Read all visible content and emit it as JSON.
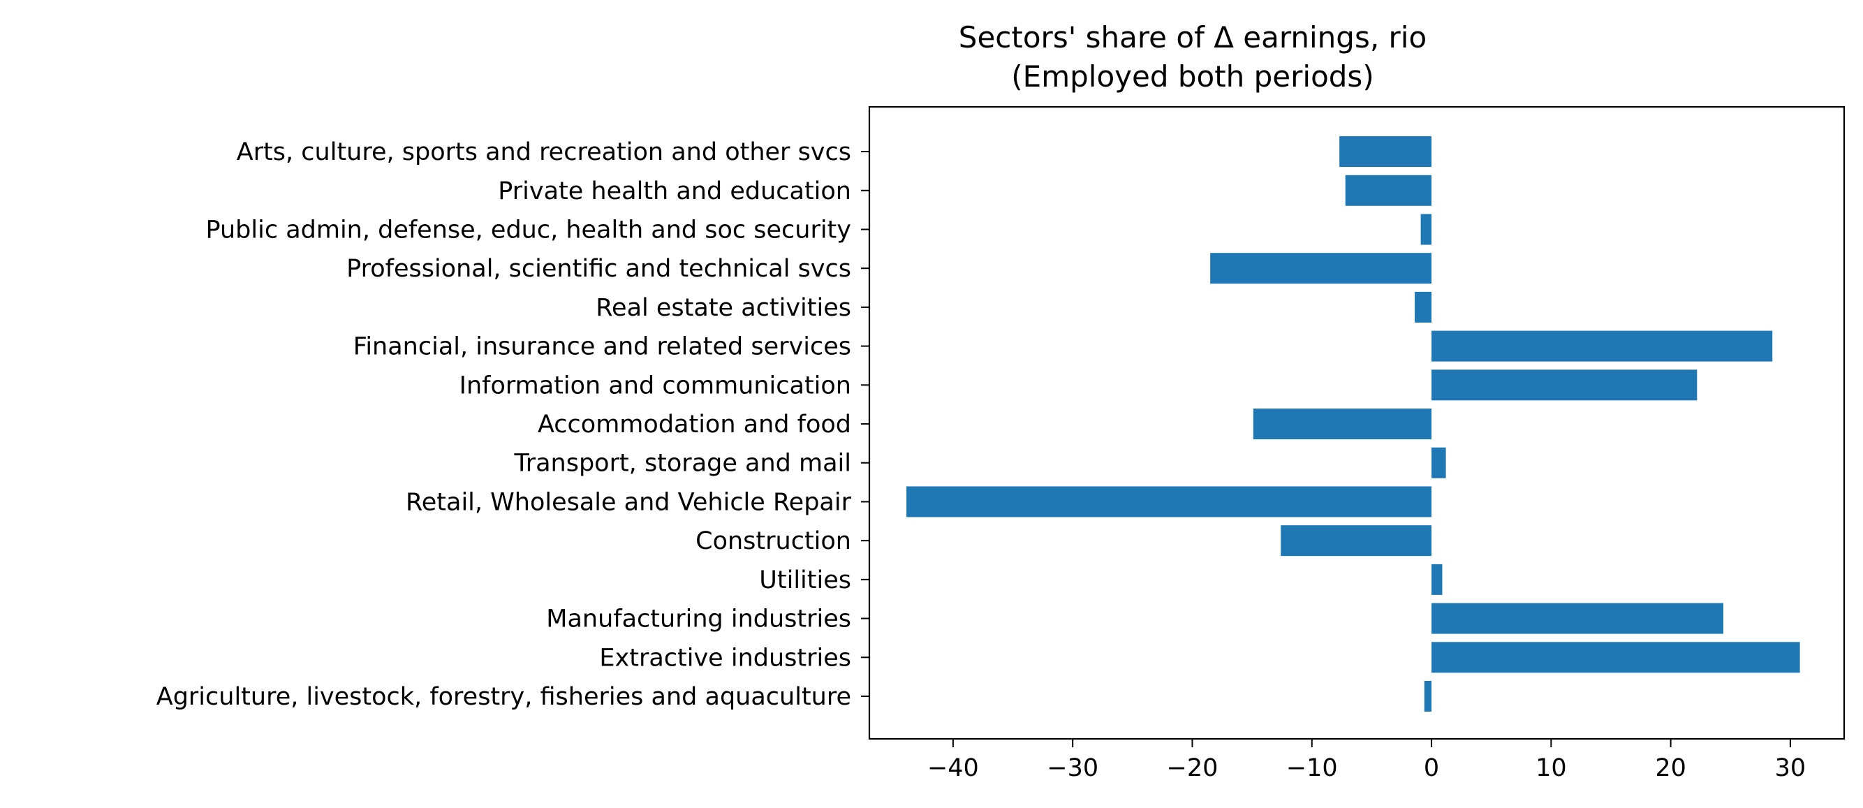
{
  "chart_data": {
    "type": "bar",
    "orientation": "horizontal",
    "title": "Sectors' share of Δ earnings, rio",
    "subtitle": "(Employed both periods)",
    "xlabel": "",
    "ylabel": "",
    "xlim": [
      -47,
      34.5
    ],
    "xticks": [
      -40,
      -30,
      -20,
      -10,
      0,
      10,
      20,
      30
    ],
    "xtick_labels": [
      "−40",
      "−30",
      "−20",
      "−10",
      "0",
      "10",
      "20",
      "30"
    ],
    "grid": false,
    "bar_color": "#1f77b4",
    "categories": [
      "Agriculture, livestock, forestry, fisheries and aquaculture",
      "Extractive industries",
      "Manufacturing industries",
      "Utilities",
      "Construction",
      "Retail, Wholesale and Vehicle Repair",
      "Transport, storage and mail",
      "Accommodation and food",
      "Information and communication",
      "Financial, insurance and related services",
      "Real estate activities",
      "Professional, scientific and technical svcs",
      "Public admin, defense, educ, health and soc security",
      "Private health and education",
      "Arts, culture, sports and recreation and other svcs"
    ],
    "values": [
      -0.6,
      30.8,
      24.4,
      0.9,
      -12.6,
      -43.9,
      1.2,
      -14.9,
      22.2,
      28.5,
      -1.4,
      -18.5,
      -0.9,
      -7.2,
      -7.7
    ]
  }
}
